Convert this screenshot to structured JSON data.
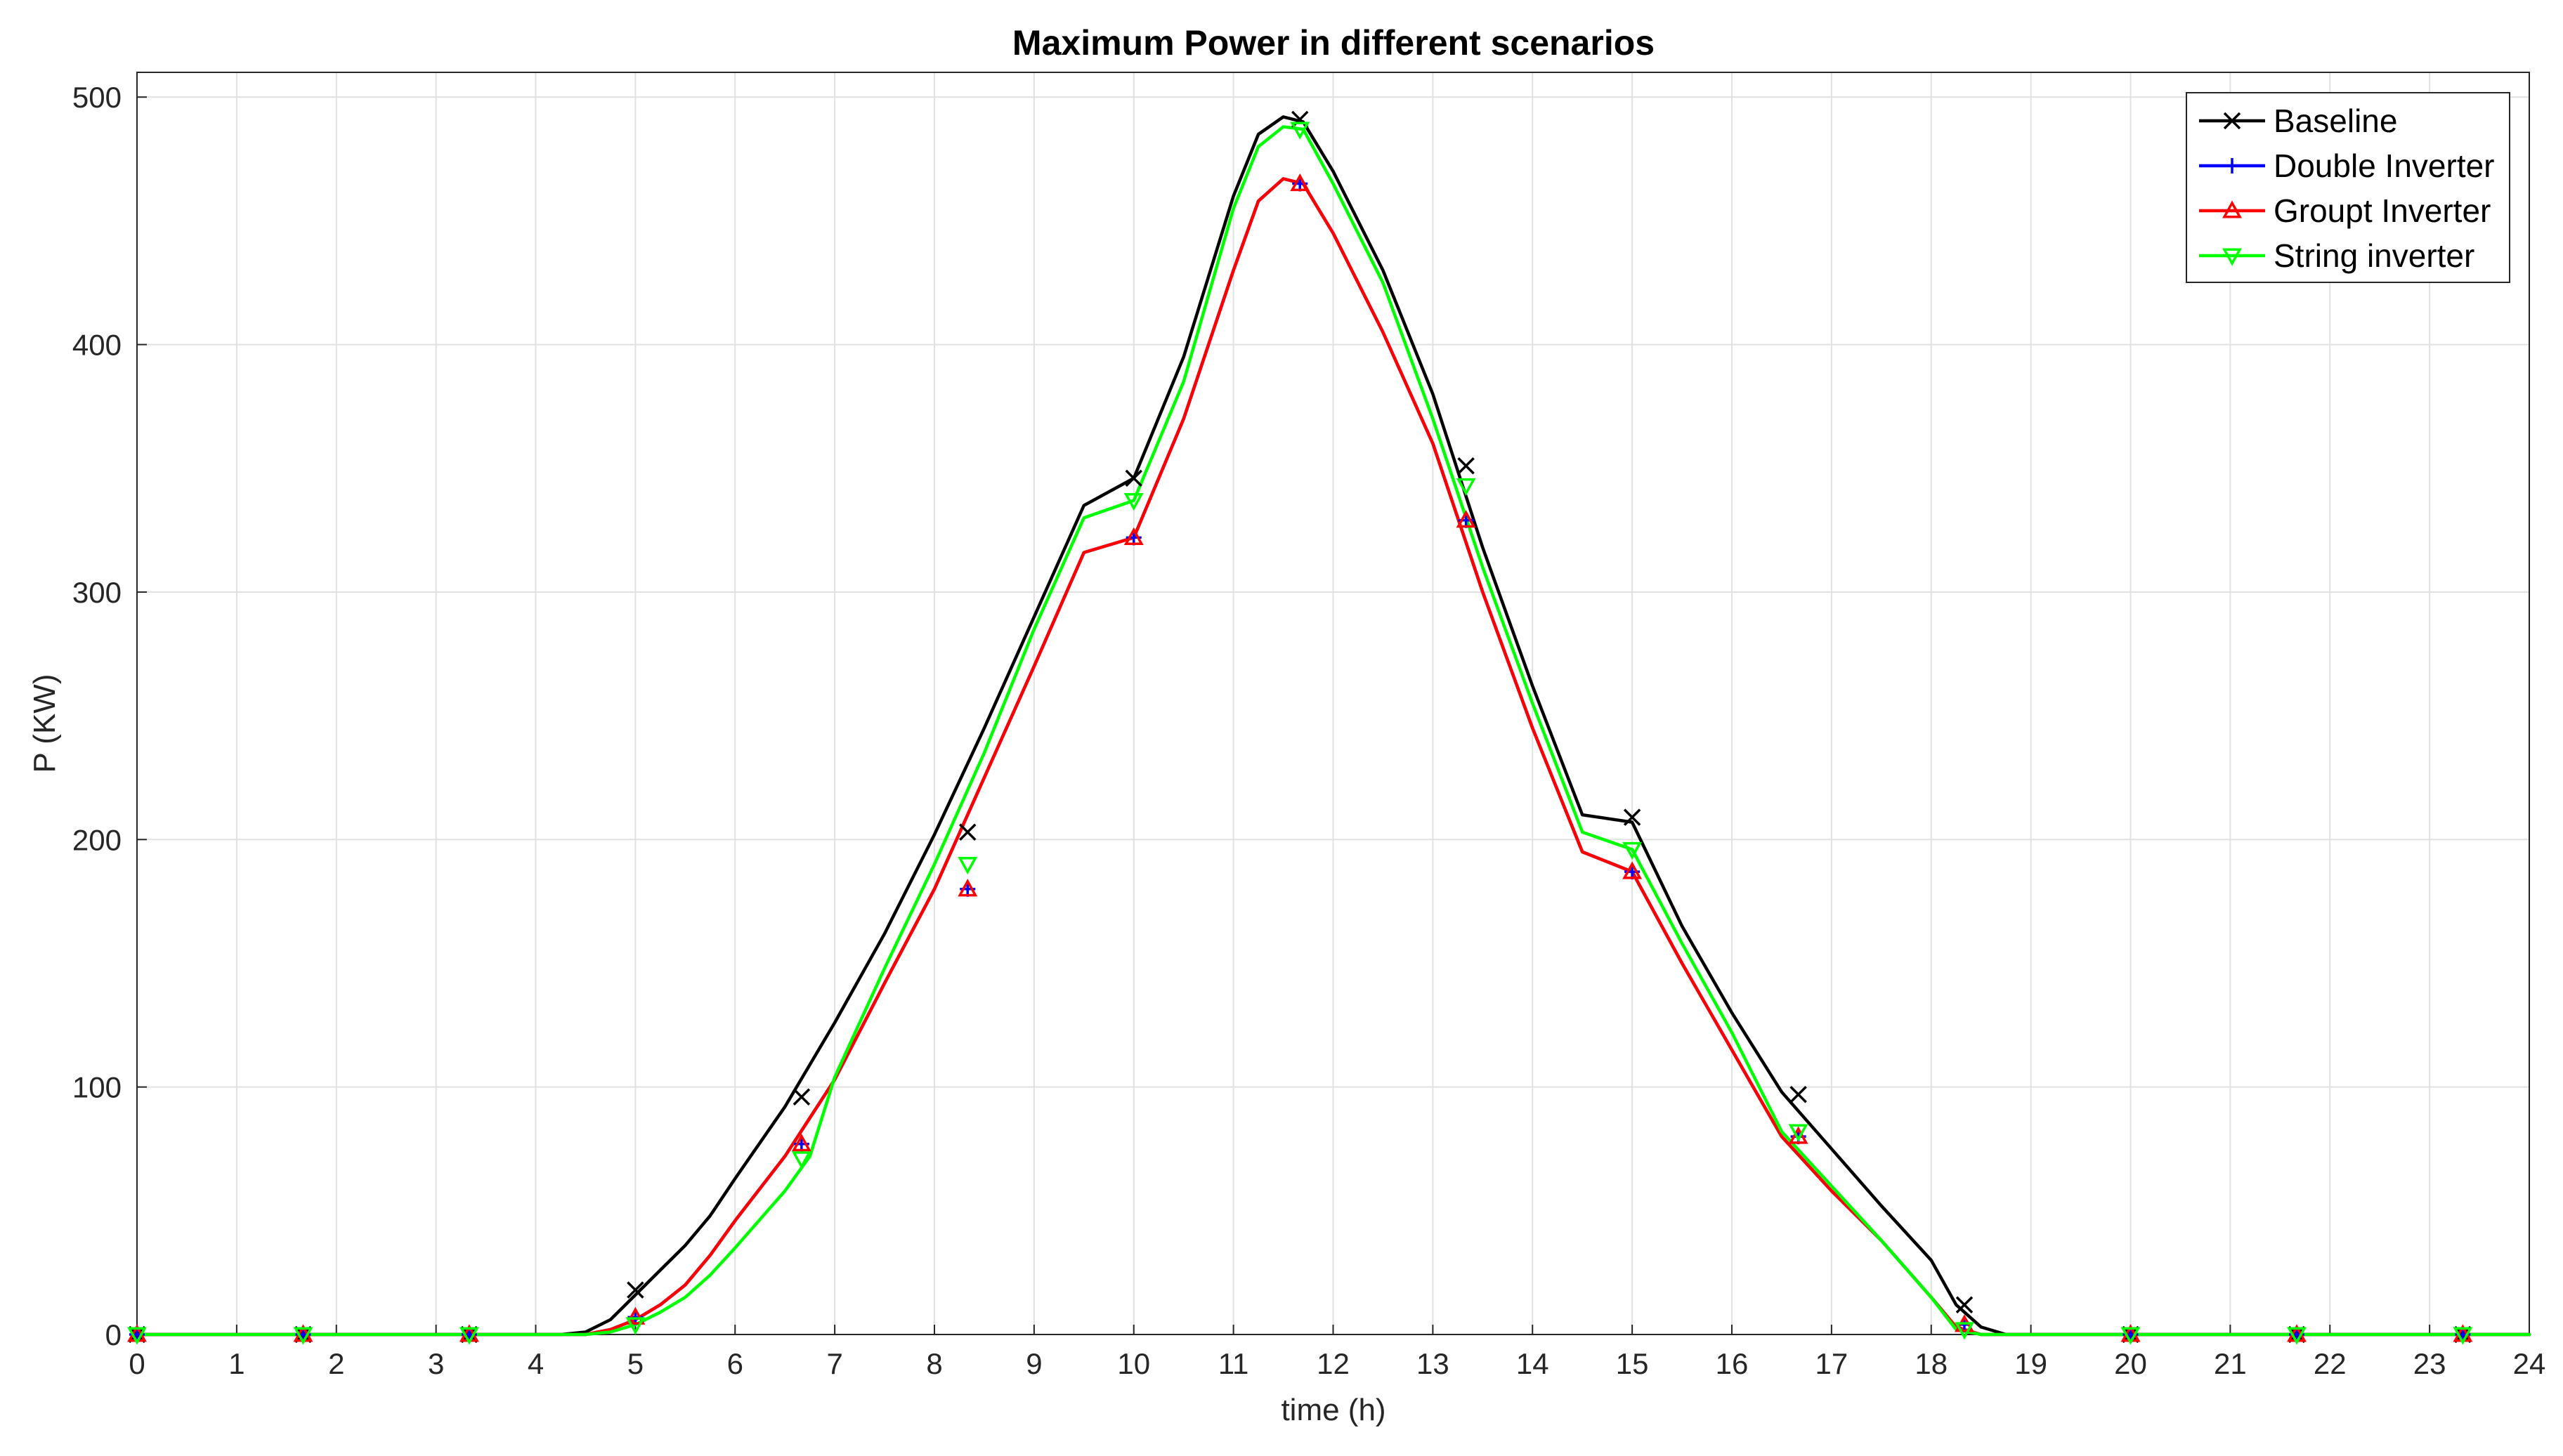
{
  "chart_data": {
    "type": "line",
    "title": "Maximum Power in different scenarios",
    "xlabel": "time (h)",
    "ylabel": "P (KW)",
    "xlim": [
      0,
      24
    ],
    "ylim": [
      0,
      510
    ],
    "xticks": [
      0,
      1,
      2,
      3,
      4,
      5,
      6,
      7,
      8,
      9,
      10,
      11,
      12,
      13,
      14,
      15,
      16,
      17,
      18,
      19,
      20,
      21,
      22,
      23,
      24
    ],
    "yticks": [
      0,
      100,
      200,
      300,
      400,
      500
    ],
    "grid": true,
    "legend_position": "top-right",
    "series": [
      {
        "name": "Baseline",
        "color": "#000000",
        "marker": "x",
        "x": [
          0,
          0.5,
          1,
          1.5,
          2,
          2.5,
          3,
          3.5,
          4,
          4.25,
          4.5,
          4.75,
          5,
          5.25,
          5.5,
          5.75,
          6,
          6.5,
          7,
          7.5,
          8,
          8.5,
          9,
          9.5,
          10,
          10.5,
          11,
          11.25,
          11.5,
          11.7,
          12,
          12.5,
          13,
          13.5,
          14,
          14.5,
          15,
          15.5,
          16,
          16.5,
          17,
          17.5,
          18,
          18.25,
          18.5,
          18.75,
          19,
          19.5,
          20,
          20.5,
          21,
          21.5,
          22,
          22.5,
          23,
          23.5,
          24
        ],
        "y": [
          0,
          0,
          0,
          0,
          0,
          0,
          0,
          0,
          0,
          0,
          1,
          6,
          16,
          26,
          36,
          48,
          63,
          92,
          126,
          162,
          202,
          245,
          290,
          335,
          346,
          395,
          460,
          485,
          492,
          490,
          470,
          430,
          380,
          318,
          262,
          210,
          207,
          165,
          130,
          98,
          75,
          52,
          30,
          12,
          3,
          0,
          0,
          0,
          0,
          0,
          0,
          0,
          0,
          0,
          0,
          0,
          0
        ],
        "markers_x": [
          0,
          1.667,
          3.333,
          5,
          6.667,
          8.333,
          10,
          11.667,
          13.333,
          15,
          16.667,
          18.333,
          20,
          21.667,
          23.333
        ],
        "markers_y": [
          0,
          0,
          0,
          18,
          96,
          203,
          346,
          491,
          351,
          209,
          97,
          12,
          0,
          0,
          0
        ]
      },
      {
        "name": "Double Inverter",
        "color": "#0000ff",
        "marker": "+",
        "x": [
          0,
          0.5,
          1,
          1.5,
          2,
          2.5,
          3,
          3.5,
          4,
          4.5,
          4.75,
          5,
          5.25,
          5.5,
          5.75,
          6,
          6.5,
          7,
          7.5,
          8,
          8.5,
          9,
          9.5,
          10,
          10.5,
          11,
          11.25,
          11.5,
          11.7,
          12,
          12.5,
          13,
          13.5,
          14,
          14.5,
          15,
          15.5,
          16,
          16.5,
          17,
          17.5,
          18,
          18.25,
          18.5,
          18.75,
          19,
          19.5,
          20,
          20.5,
          21,
          21.5,
          22,
          22.5,
          23,
          23.5,
          24
        ],
        "y": [
          0,
          0,
          0,
          0,
          0,
          0,
          0,
          0,
          0,
          0,
          2,
          6,
          12,
          20,
          32,
          46,
          72,
          103,
          142,
          180,
          225,
          270,
          316,
          322,
          370,
          430,
          458,
          467,
          465,
          445,
          405,
          360,
          300,
          245,
          195,
          187,
          150,
          115,
          80,
          58,
          38,
          15,
          3,
          0,
          0,
          0,
          0,
          0,
          0,
          0,
          0,
          0,
          0,
          0,
          0,
          0
        ],
        "markers_x": [
          0,
          1.667,
          3.333,
          5,
          6.667,
          8.333,
          10,
          11.667,
          13.333,
          15,
          16.667,
          18.333,
          20,
          21.667,
          23.333
        ],
        "markers_y": [
          0,
          0,
          0,
          7,
          77,
          180,
          322,
          465,
          329,
          187,
          80,
          4,
          0,
          0,
          0
        ]
      },
      {
        "name": "Groupt Inverter",
        "color": "#ff0000",
        "marker": "^",
        "x": [
          0,
          0.5,
          1,
          1.5,
          2,
          2.5,
          3,
          3.5,
          4,
          4.5,
          4.75,
          5,
          5.25,
          5.5,
          5.75,
          6,
          6.5,
          7,
          7.5,
          8,
          8.5,
          9,
          9.5,
          10,
          10.5,
          11,
          11.25,
          11.5,
          11.7,
          12,
          12.5,
          13,
          13.5,
          14,
          14.5,
          15,
          15.5,
          16,
          16.5,
          17,
          17.5,
          18,
          18.25,
          18.5,
          18.75,
          19,
          19.5,
          20,
          20.5,
          21,
          21.5,
          22,
          22.5,
          23,
          23.5,
          24
        ],
        "y": [
          0,
          0,
          0,
          0,
          0,
          0,
          0,
          0,
          0,
          0,
          2,
          6,
          12,
          20,
          32,
          46,
          72,
          103,
          142,
          180,
          225,
          270,
          316,
          322,
          370,
          430,
          458,
          467,
          465,
          445,
          405,
          360,
          300,
          245,
          195,
          187,
          150,
          115,
          80,
          58,
          38,
          15,
          3,
          0,
          0,
          0,
          0,
          0,
          0,
          0,
          0,
          0,
          0,
          0,
          0,
          0
        ],
        "markers_x": [
          0,
          1.667,
          3.333,
          5,
          6.667,
          8.333,
          10,
          11.667,
          13.333,
          15,
          16.667,
          18.333,
          20,
          21.667,
          23.333
        ],
        "markers_y": [
          0,
          0,
          0,
          7,
          77,
          180,
          322,
          465,
          329,
          187,
          80,
          4,
          0,
          0,
          0
        ]
      },
      {
        "name": "String inverter",
        "color": "#00ff00",
        "marker": "v",
        "x": [
          0,
          0.5,
          1,
          1.5,
          2,
          2.5,
          3,
          3.5,
          4,
          4.5,
          4.75,
          5,
          5.25,
          5.5,
          5.75,
          6,
          6.5,
          6.75,
          7,
          7.5,
          8,
          8.5,
          9,
          9.5,
          10,
          10.5,
          11,
          11.25,
          11.5,
          11.7,
          12,
          12.5,
          13,
          13.5,
          14,
          14.5,
          15,
          15.5,
          16,
          16.5,
          17,
          17.5,
          18,
          18.25,
          18.5,
          18.75,
          19,
          19.5,
          20,
          20.5,
          21,
          21.5,
          22,
          22.5,
          23,
          23.5,
          24
        ],
        "y": [
          0,
          0,
          0,
          0,
          0,
          0,
          0,
          0,
          0,
          0,
          1,
          4,
          9,
          15,
          24,
          35,
          58,
          72,
          104,
          148,
          190,
          235,
          285,
          330,
          337,
          385,
          455,
          480,
          488,
          487,
          465,
          425,
          370,
          310,
          255,
          203,
          196,
          158,
          122,
          82,
          60,
          38,
          15,
          2,
          0,
          0,
          0,
          0,
          0,
          0,
          0,
          0,
          0,
          0,
          0,
          0,
          0
        ],
        "markers_x": [
          0,
          1.667,
          3.333,
          5,
          6.667,
          8.333,
          10,
          11.667,
          13.333,
          15,
          16.667,
          18.333,
          20,
          21.667,
          23.333
        ],
        "markers_y": [
          0,
          0,
          0,
          4,
          71,
          190,
          337,
          487,
          343,
          196,
          82,
          2,
          0,
          0,
          0
        ]
      }
    ]
  }
}
